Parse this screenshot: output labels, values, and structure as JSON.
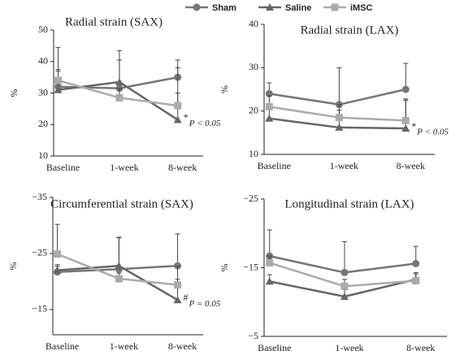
{
  "chart_data": [
    {
      "type": "line",
      "title": "Radial strain  (SAX)",
      "y_label": "%",
      "categories": [
        "Baseline",
        "1-week",
        "8-week"
      ],
      "ylim": [
        10,
        50
      ],
      "yticks": [
        10,
        20,
        30,
        40,
        50
      ],
      "series": [
        {
          "name": "Sham",
          "color": "#767676",
          "marker": "circle",
          "values": [
            32,
            31.5,
            35
          ],
          "errors": [
            12.5,
            12,
            5.5
          ]
        },
        {
          "name": "Saline",
          "color": "#666666",
          "marker": "triangle",
          "values": [
            31,
            33.5,
            21.5
          ],
          "errors": [
            6.5,
            7,
            16.5
          ]
        },
        {
          "name": "iMSC",
          "color": "#ababab",
          "marker": "square",
          "values": [
            34,
            28.5,
            26
          ],
          "errors": [
            3,
            3,
            4
          ]
        }
      ],
      "annotation_symbol": "*",
      "annotation": "P < 0.05"
    },
    {
      "type": "line",
      "title": "Radial strain  (LAX)",
      "y_label": "%",
      "categories": [
        "Baseline",
        "1-week",
        "8-week"
      ],
      "ylim": [
        10,
        40
      ],
      "yticks": [
        10,
        20,
        30,
        40
      ],
      "series": [
        {
          "color": "#767676",
          "values": [
            24,
            21.5,
            25
          ],
          "errors": [
            2.5,
            8.5,
            6
          ]
        },
        {
          "color": "#666666",
          "values": [
            18.3,
            16.2,
            16
          ],
          "errors": [
            3,
            4,
            6.5
          ]
        },
        {
          "color": "#ababab",
          "values": [
            21,
            18.5,
            17.8
          ],
          "errors": [
            2.5,
            3,
            5
          ]
        }
      ],
      "annotation_symbol": "*",
      "annotation": "P < 0.05"
    },
    {
      "type": "line",
      "title": "Circumferential strain  (SAX)",
      "y_label": "%",
      "categories": [
        "Baseline",
        "1-week",
        "8-week"
      ],
      "ylim": [
        -10.5,
        -35
      ],
      "yticks": [
        {
          "value": -35,
          "label": "−35"
        },
        {
          "value": -25,
          "label": "−25"
        },
        {
          "value": -15,
          "label": "−15"
        }
      ],
      "series": [
        {
          "color": "#767676",
          "values": [
            -21.7,
            -22.2,
            -22.8
          ],
          "errors": [
            1,
            5.7,
            5.7
          ]
        },
        {
          "color": "#666666",
          "values": [
            -22,
            -22.8,
            -16.7
          ],
          "errors": [
            1,
            5,
            6
          ]
        },
        {
          "color": "#ababab",
          "values": [
            -24.9,
            -20.5,
            -19.4
          ],
          "errors": [
            5.3,
            1,
            1
          ]
        }
      ],
      "annotation_symbol": "#",
      "annotation": "P = 0.05"
    },
    {
      "type": "line",
      "title": "Longitudinal strain  (LAX)",
      "y_label": "%",
      "categories": [
        "Baseline",
        "1-week",
        "8-week"
      ],
      "ylim": [
        -5,
        -25
      ],
      "yticks": [
        {
          "value": -25,
          "label": "−25"
        },
        {
          "value": -15,
          "label": "−15"
        },
        {
          "value": -5,
          "label": "−5"
        }
      ],
      "series": [
        {
          "color": "#767676",
          "values": [
            -16.7,
            -14.3,
            -15.6
          ],
          "errors": [
            3.8,
            4.5,
            2.5
          ]
        },
        {
          "color": "#666666",
          "values": [
            -13,
            -10.8,
            -13.3
          ],
          "errors": [
            1,
            1,
            1
          ]
        },
        {
          "color": "#ababab",
          "values": [
            -15.7,
            -12.3,
            -13.1
          ],
          "errors": [
            1,
            1,
            1
          ]
        }
      ]
    }
  ]
}
